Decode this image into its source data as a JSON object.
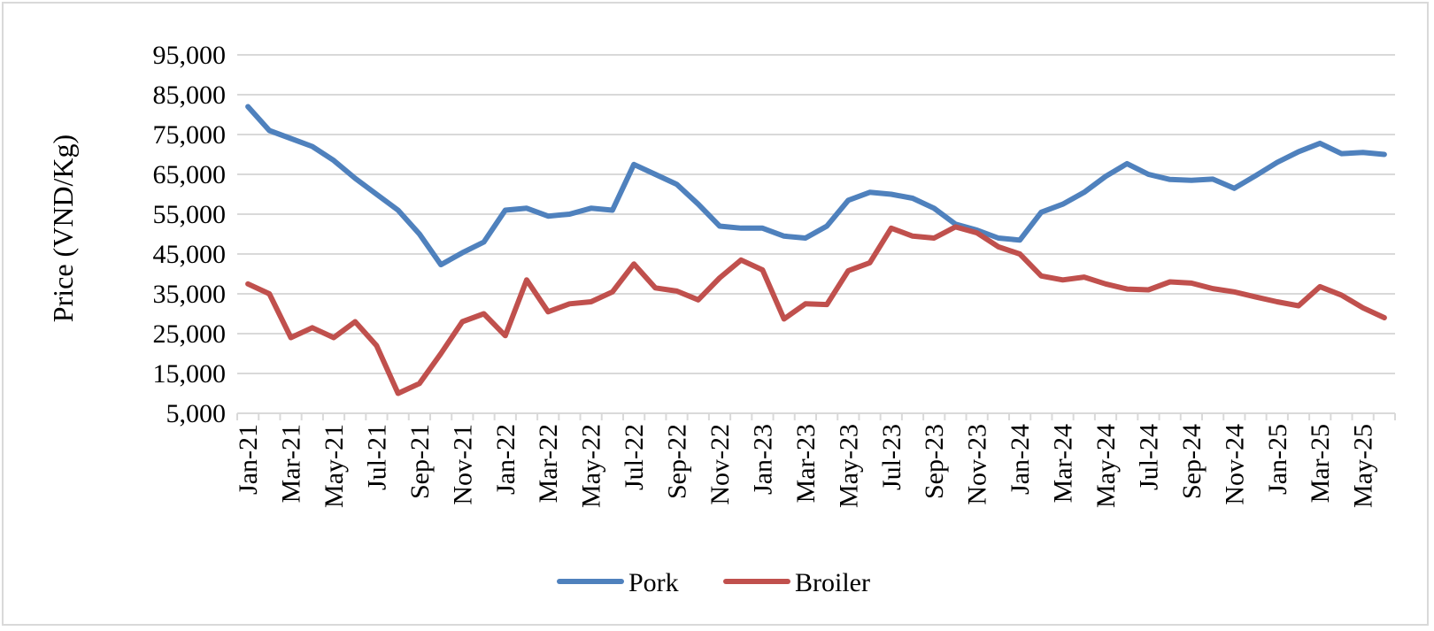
{
  "chart_data": {
    "type": "line",
    "title": "",
    "xlabel": "",
    "ylabel": "Price (VND/Kg)",
    "ylim": [
      5000,
      95000
    ],
    "yticks": [
      5000,
      15000,
      25000,
      35000,
      45000,
      55000,
      65000,
      75000,
      85000,
      95000
    ],
    "ytick_labels": [
      "5,000",
      "15,000",
      "25,000",
      "35,000",
      "45,000",
      "55,000",
      "65,000",
      "75,000",
      "85,000",
      "95,000"
    ],
    "grid": true,
    "legend_position": "bottom",
    "x": [
      "Jan-21",
      "Feb-21",
      "Mar-21",
      "Apr-21",
      "May-21",
      "Jun-21",
      "Jul-21",
      "Aug-21",
      "Sep-21",
      "Oct-21",
      "Nov-21",
      "Dec-21",
      "Jan-22",
      "Feb-22",
      "Mar-22",
      "Apr-22",
      "May-22",
      "Jun-22",
      "Jul-22",
      "Aug-22",
      "Sep-22",
      "Oct-22",
      "Nov-22",
      "Dec-22",
      "Jan-23",
      "Feb-23",
      "Mar-23",
      "Apr-23",
      "May-23",
      "Jun-23",
      "Jul-23",
      "Aug-23",
      "Sep-23",
      "Oct-23",
      "Nov-23",
      "Dec-23",
      "Jan-24",
      "Feb-24",
      "Mar-24",
      "Apr-24",
      "May-24",
      "Jun-24",
      "Jul-24",
      "Aug-24",
      "Sep-24",
      "Oct-24",
      "Nov-24",
      "Dec-24",
      "Jan-25",
      "Feb-25",
      "Mar-25",
      "Apr-25",
      "May-25",
      "Jun-25"
    ],
    "xtick_labels": [
      "Jan-21",
      "Mar-21",
      "May-21",
      "Jul-21",
      "Sep-21",
      "Nov-21",
      "Jan-22",
      "Mar-22",
      "May-22",
      "Jul-22",
      "Sep-22",
      "Nov-22",
      "Jan-23",
      "Mar-23",
      "May-23",
      "Jul-23",
      "Sep-23",
      "Nov-23",
      "Jan-24",
      "Mar-24",
      "May-24",
      "Jul-24",
      "Sep-24",
      "Nov-24",
      "Jan-25",
      "Mar-25",
      "May-25"
    ],
    "series": [
      {
        "name": "Pork",
        "color": "#4f81bd",
        "values": [
          82000,
          76000,
          74000,
          72000,
          68500,
          64000,
          60000,
          56000,
          50000,
          42300,
          45300,
          48000,
          56000,
          56500,
          54500,
          55000,
          56500,
          56000,
          67500,
          65000,
          62500,
          57500,
          52000,
          51500,
          51500,
          49500,
          49000,
          52000,
          58500,
          60500,
          60000,
          59000,
          56500,
          52500,
          51000,
          49000,
          48500,
          55500,
          57500,
          60500,
          64500,
          67700,
          65000,
          63700,
          63500,
          63800,
          61500,
          64700,
          68000,
          70700,
          72800,
          70200,
          70500,
          70000
        ]
      },
      {
        "name": "Broiler",
        "color": "#c0504d",
        "values": [
          37500,
          35000,
          24000,
          26500,
          24000,
          28000,
          22000,
          10000,
          12500,
          20000,
          28000,
          30000,
          24500,
          38500,
          30500,
          32500,
          33000,
          35500,
          42500,
          36500,
          35700,
          33500,
          39000,
          43500,
          41000,
          28700,
          32500,
          32300,
          40800,
          42800,
          51500,
          49500,
          49000,
          51800,
          50300,
          46800,
          45000,
          39500,
          38500,
          39200,
          37500,
          36200,
          36000,
          38000,
          37700,
          36300,
          35500,
          34200,
          33000,
          32000,
          36800,
          34700,
          31500,
          29000
        ]
      }
    ]
  }
}
